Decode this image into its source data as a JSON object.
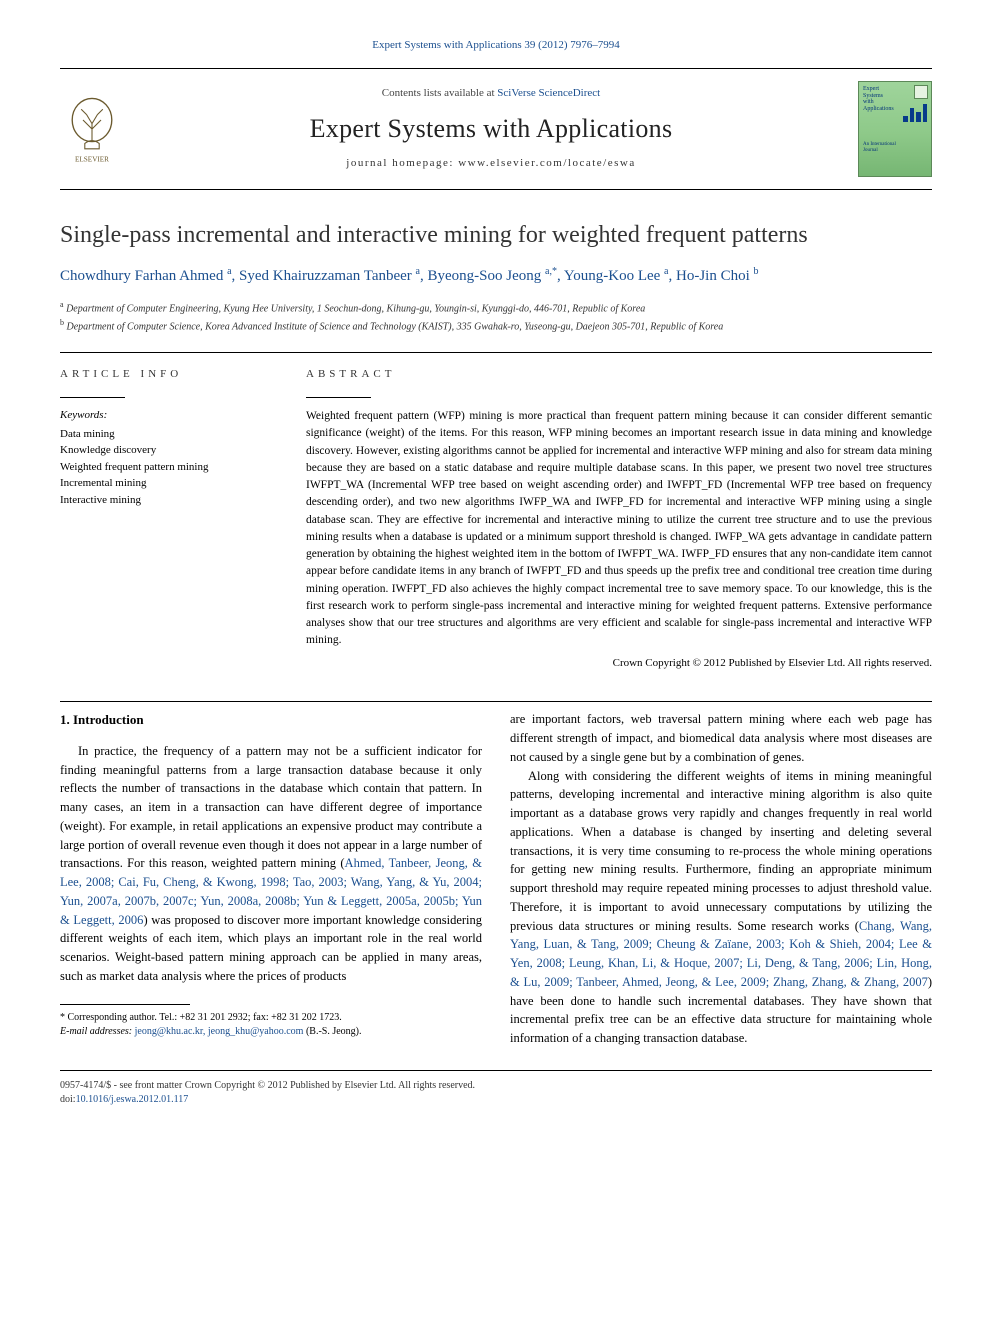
{
  "citation_line": "Expert Systems with Applications 39 (2012) 7976–7994",
  "header": {
    "contents_prefix": "Contents lists available at ",
    "contents_link": "SciVerse ScienceDirect",
    "journal_name": "Expert Systems with Applications",
    "homepage_label": "journal homepage: www.elsevier.com/locate/eswa",
    "cover": {
      "line1": "Expert",
      "line2": "Systems",
      "line3": "with",
      "line4": "Applications",
      "line5": "An International",
      "line6": "Journal",
      "mini_bars": [
        6,
        14,
        10,
        18
      ]
    },
    "colors": {
      "link": "#1b4f8f",
      "cover_bg_top": "#9fd49b",
      "cover_bg_bottom": "#76b673",
      "cover_text": "#06357a"
    }
  },
  "title": "Single-pass incremental and interactive mining for weighted frequent patterns",
  "authors_html": "Chowdhury Farhan Ahmed|a|, Syed Khairuzzaman Tanbeer|a|, Byeong-Soo Jeong|a,*|, Young-Koo Lee|a|, Ho-Jin Choi|b|",
  "authors": [
    {
      "name": "Chowdhury Farhan Ahmed",
      "sup": "a"
    },
    {
      "name": "Syed Khairuzzaman Tanbeer",
      "sup": "a"
    },
    {
      "name": "Byeong-Soo Jeong",
      "sup": "a,*"
    },
    {
      "name": "Young-Koo Lee",
      "sup": "a"
    },
    {
      "name": "Ho-Jin Choi",
      "sup": "b"
    }
  ],
  "affiliations": [
    {
      "sup": "a",
      "text": "Department of Computer Engineering, Kyung Hee University, 1 Seochun-dong, Kihung-gu, Youngin-si, Kyunggi-do, 446-701, Republic of Korea"
    },
    {
      "sup": "b",
      "text": "Department of Computer Science, Korea Advanced Institute of Science and Technology (KAIST), 335 Gwahak-ro, Yuseong-gu, Daejeon 305-701, Republic of Korea"
    }
  ],
  "article_info_heading": "ARTICLE INFO",
  "abstract_heading": "ABSTRACT",
  "keywords_label": "Keywords:",
  "keywords": [
    "Data mining",
    "Knowledge discovery",
    "Weighted frequent pattern mining",
    "Incremental mining",
    "Interactive mining"
  ],
  "abstract": "Weighted frequent pattern (WFP) mining is more practical than frequent pattern mining because it can consider different semantic significance (weight) of the items. For this reason, WFP mining becomes an important research issue in data mining and knowledge discovery. However, existing algorithms cannot be applied for incremental and interactive WFP mining and also for stream data mining because they are based on a static database and require multiple database scans. In this paper, we present two novel tree structures IWFPT_WA (Incremental WFP tree based on weight ascending order) and IWFPT_FD (Incremental WFP tree based on frequency descending order), and two new algorithms IWFP_WA and IWFP_FD for incremental and interactive WFP mining using a single database scan. They are effective for incremental and interactive mining to utilize the current tree structure and to use the previous mining results when a database is updated or a minimum support threshold is changed. IWFP_WA gets advantage in candidate pattern generation by obtaining the highest weighted item in the bottom of IWFPT_WA. IWFP_FD ensures that any non-candidate item cannot appear before candidate items in any branch of IWFPT_FD and thus speeds up the prefix tree and conditional tree creation time during mining operation. IWFPT_FD also achieves the highly compact incremental tree to save memory space. To our knowledge, this is the first research work to perform single-pass incremental and interactive mining for weighted frequent patterns. Extensive performance analyses show that our tree structures and algorithms are very efficient and scalable for single-pass incremental and interactive WFP mining.",
  "copyright_line": "Crown Copyright © 2012 Published by Elsevier Ltd. All rights reserved.",
  "intro_heading": "1. Introduction",
  "intro_col1_p1_pre": "In practice, the frequency of a pattern may not be a sufficient indicator for finding meaningful patterns from a large transaction database because it only reflects the number of transactions in the database which contain that pattern. In many cases, an item in a transaction can have different degree of importance (weight). For example, in retail applications an expensive product may contribute a large portion of overall revenue even though it does not appear in a large number of transactions. For this reason, weighted pattern mining (",
  "intro_col1_p1_cite": "Ahmed, Tanbeer, Jeong, & Lee, 2008; Cai, Fu, Cheng, & Kwong, 1998; Tao, 2003; Wang, Yang, & Yu, 2004; Yun, 2007a, 2007b, 2007c; Yun, 2008a, 2008b; Yun & Leggett, 2005a, 2005b; Yun & Leggett, 2006",
  "intro_col1_p1_post": ") was proposed to discover more important knowledge considering different weights of each item, which plays an important role in the real world scenarios. Weight-based pattern mining approach can be applied in many areas, such as market data analysis where the prices of products",
  "intro_col2_p1": "are important factors, web traversal pattern mining where each web page has different strength of impact, and biomedical data analysis where most diseases are not caused by a single gene but by a combination of genes.",
  "intro_col2_p2_pre": "Along with considering the different weights of items in mining meaningful patterns, developing incremental and interactive mining algorithm is also quite important as a database grows very rapidly and changes frequently in real world applications. When a database is changed by inserting and deleting several transactions, it is very time consuming to re-process the whole mining operations for getting new mining results. Furthermore, finding an appropriate minimum support threshold may require repeated mining processes to adjust threshold value. Therefore, it is important to avoid unnecessary computations by utilizing the previous data structures or mining results. Some research works (",
  "intro_col2_p2_cite": "Chang, Wang, Yang, Luan, & Tang, 2009; Cheung & Zaïane, 2003; Koh & Shieh, 2004; Lee & Yen, 2008; Leung, Khan, Li, & Hoque, 2007; Li, Deng, & Tang, 2006; Lin, Hong, & Lu, 2009; Tanbeer, Ahmed, Jeong, & Lee, 2009; Zhang, Zhang, & Zhang, 2007",
  "intro_col2_p2_post": ") have been done to handle such incremental databases. They have shown that incremental prefix tree can be an effective data structure for maintaining whole information of a changing transaction database.",
  "corresponding": {
    "label": "* Corresponding author. Tel.: +82 31 201 2932; fax: +82 31 202 1723.",
    "email_label": "E-mail addresses:",
    "emails": "jeong@khu.ac.kr, jeong_khu@yahoo.com",
    "email_suffix": " (B.-S. Jeong)."
  },
  "footer": {
    "line1": "0957-4174/$ - see front matter Crown Copyright © 2012 Published by Elsevier Ltd. All rights reserved.",
    "doi_prefix": "doi:",
    "doi": "10.1016/j.eswa.2012.01.117"
  }
}
